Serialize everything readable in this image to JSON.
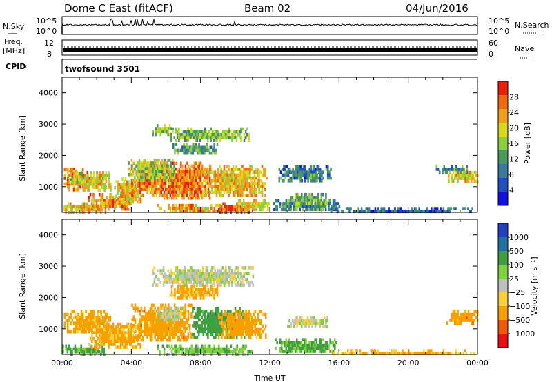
{
  "header": {
    "station": "Dome C East (fitACF)",
    "beam": "Beam 02",
    "date": "04/Jun/2016"
  },
  "top_panels": {
    "nsky_label": "N.Sky",
    "nsearch_label": "N.Search",
    "nsky_ticks": [
      "10^5",
      "10^0"
    ],
    "nsearch_ticks": [
      "10^5",
      "10^0"
    ],
    "freq_label": "Freq.",
    "freq_unit": "[MHz]",
    "freq_ticks": [
      "12",
      "8"
    ],
    "nave_label": "Nave",
    "nave_ticks": [
      "60",
      "0"
    ],
    "cpid_label": "CPID",
    "cpid_value": "twofsound 3501"
  },
  "colors": {
    "power": [
      "#1010e0",
      "#2050c0",
      "#3a7a9a",
      "#4c9a5a",
      "#8ad040",
      "#d8d820",
      "#f0a020",
      "#f06a10",
      "#e82008"
    ],
    "velocity": [
      "#e81010",
      "#f05a0a",
      "#f6a000",
      "#f8d040",
      "#c0c0c0",
      "#80d040",
      "#40a040",
      "#2070a0",
      "#2040c0"
    ]
  },
  "chart_data": [
    {
      "type": "heatmap",
      "name": "power",
      "xlabel": "",
      "ylabel": "Slant Range [km]",
      "xlim": [
        0,
        24
      ],
      "ylim": [
        180,
        4500
      ],
      "yticks": [
        1000,
        2000,
        3000,
        4000
      ],
      "colorbar": {
        "label": "Power [dB]",
        "ticks": [
          "28",
          "24",
          "20",
          "16",
          "12",
          "8",
          "4"
        ],
        "range": [
          0,
          32
        ]
      },
      "regions": [
        {
          "x": [
            0.1,
            1.6
          ],
          "y": [
            900,
            1600
          ],
          "v": 26
        },
        {
          "x": [
            1.0,
            2.8
          ],
          "y": [
            900,
            1500
          ],
          "v": 20
        },
        {
          "x": [
            0.3,
            1.2
          ],
          "y": [
            1100,
            1550
          ],
          "v": 18
        },
        {
          "x": [
            0.0,
            2.5
          ],
          "y": [
            200,
            500
          ],
          "v": 22
        },
        {
          "x": [
            1.5,
            4.0
          ],
          "y": [
            300,
            800
          ],
          "v": 24
        },
        {
          "x": [
            3.0,
            4.5
          ],
          "y": [
            500,
            1300
          ],
          "v": 22
        },
        {
          "x": [
            4.0,
            6.0
          ],
          "y": [
            700,
            1800
          ],
          "v": 25
        },
        {
          "x": [
            5.5,
            8.5
          ],
          "y": [
            600,
            1800
          ],
          "v": 26
        },
        {
          "x": [
            8.0,
            11.8
          ],
          "y": [
            700,
            1700
          ],
          "v": 22
        },
        {
          "x": [
            3.8,
            6.5
          ],
          "y": [
            1200,
            1900
          ],
          "v": 17
        },
        {
          "x": [
            5.5,
            9.2
          ],
          "y": [
            200,
            450
          ],
          "v": 23
        },
        {
          "x": [
            9.0,
            10.8
          ],
          "y": [
            200,
            500
          ],
          "v": 28
        },
        {
          "x": [
            10.0,
            12.0
          ],
          "y": [
            300,
            600
          ],
          "v": 20
        },
        {
          "x": [
            5.2,
            6.4
          ],
          "y": [
            2700,
            3000
          ],
          "v": 16
        },
        {
          "x": [
            6.0,
            10.8
          ],
          "y": [
            2500,
            2900
          ],
          "v": 15
        },
        {
          "x": [
            6.2,
            9.0
          ],
          "y": [
            2100,
            2400
          ],
          "v": 12
        },
        {
          "x": [
            12.2,
            16.0
          ],
          "y": [
            250,
            600
          ],
          "v": 10
        },
        {
          "x": [
            13.0,
            15.3
          ],
          "y": [
            500,
            800
          ],
          "v": 14
        },
        {
          "x": [
            12.5,
            15.5
          ],
          "y": [
            1200,
            1700
          ],
          "v": 9
        },
        {
          "x": [
            15.5,
            23.8
          ],
          "y": [
            180,
            350
          ],
          "v": 8
        },
        {
          "x": [
            22.2,
            24.0
          ],
          "y": [
            1200,
            1600
          ],
          "v": 20
        },
        {
          "x": [
            21.5,
            23.5
          ],
          "y": [
            1500,
            1700
          ],
          "v": 10
        }
      ]
    },
    {
      "type": "heatmap",
      "name": "velocity",
      "xlabel": "Time UT",
      "ylabel": "Slant Range [km]",
      "xlim": [
        0,
        24
      ],
      "ylim": [
        180,
        4500
      ],
      "xticks": [
        "00:00",
        "04:00",
        "08:00",
        "12:00",
        "16:00",
        "20:00",
        "00:00"
      ],
      "yticks": [
        1000,
        2000,
        3000,
        4000
      ],
      "colorbar": {
        "label": "Velocity [m s⁻¹]",
        "ticks": [
          "1000",
          "500",
          "100",
          "25",
          "−25",
          "−100",
          "−500",
          "−1000"
        ],
        "range": [
          -1500,
          1500
        ]
      },
      "regions": [
        {
          "x": [
            0.1,
            2.8
          ],
          "y": [
            900,
            1600
          ],
          "v": -200
        },
        {
          "x": [
            0.0,
            2.5
          ],
          "y": [
            200,
            500
          ],
          "v": 150
        },
        {
          "x": [
            1.5,
            4.5
          ],
          "y": [
            400,
            1200
          ],
          "v": -150
        },
        {
          "x": [
            4.0,
            7.5
          ],
          "y": [
            600,
            1800
          ],
          "v": -300
        },
        {
          "x": [
            7.5,
            10.5
          ],
          "y": [
            700,
            1700
          ],
          "v": 300
        },
        {
          "x": [
            9.0,
            11.8
          ],
          "y": [
            700,
            1600
          ],
          "v": -300
        },
        {
          "x": [
            5.5,
            7.0
          ],
          "y": [
            1300,
            1800
          ],
          "v": 0
        },
        {
          "x": [
            5.5,
            11.0
          ],
          "y": [
            200,
            500
          ],
          "v": 80
        },
        {
          "x": [
            5.2,
            11.0
          ],
          "y": [
            2400,
            3000
          ],
          "v": 0
        },
        {
          "x": [
            6.2,
            9.0
          ],
          "y": [
            2000,
            2400
          ],
          "v": -120
        },
        {
          "x": [
            12.2,
            15.8
          ],
          "y": [
            250,
            700
          ],
          "v": 120
        },
        {
          "x": [
            13.0,
            15.3
          ],
          "y": [
            1100,
            1400
          ],
          "v": 0
        },
        {
          "x": [
            15.5,
            23.8
          ],
          "y": [
            180,
            350
          ],
          "v": -120
        },
        {
          "x": [
            22.2,
            24.0
          ],
          "y": [
            1200,
            1600
          ],
          "v": -300
        }
      ]
    }
  ]
}
